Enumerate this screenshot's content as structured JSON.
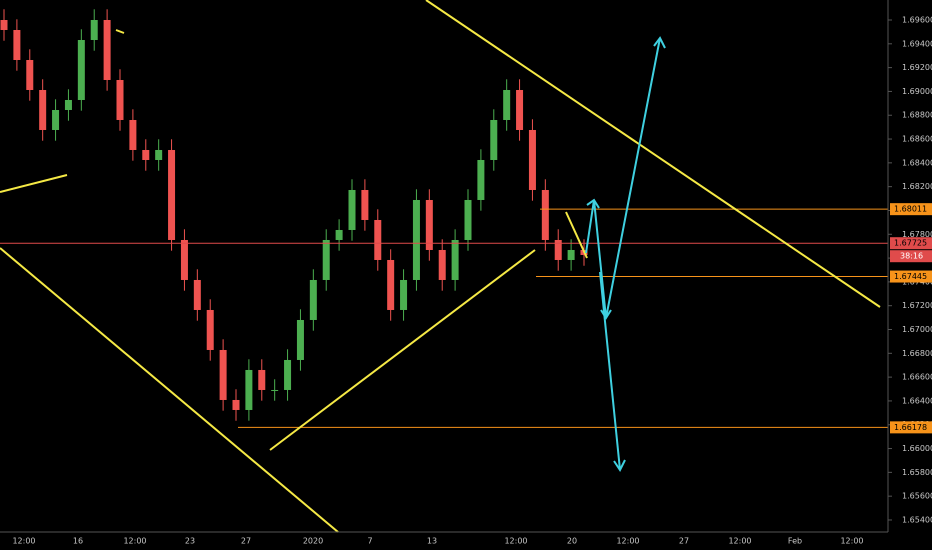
{
  "chart_data": {
    "type": "candlestick",
    "up_color": "#4caf50",
    "down_color": "#ef5350",
    "ylim": [
      1.65299,
      1.69768
    ],
    "yticks": [
      {
        "value": 1.654,
        "label": "1.65400"
      },
      {
        "value": 1.656,
        "label": "1.65600"
      },
      {
        "value": 1.658,
        "label": "1.65800"
      },
      {
        "value": 1.66,
        "label": "1.66000"
      },
      {
        "value": 1.662,
        "label": "1.66200"
      },
      {
        "value": 1.664,
        "label": "1.66400"
      },
      {
        "value": 1.666,
        "label": "1.66600"
      },
      {
        "value": 1.668,
        "label": "1.66800"
      },
      {
        "value": 1.67,
        "label": "1.67000"
      },
      {
        "value": 1.672,
        "label": "1.67200"
      },
      {
        "value": 1.674,
        "label": "1.67400"
      },
      {
        "value": 1.676,
        "label": "1.67600"
      },
      {
        "value": 1.678,
        "label": "1.67800"
      },
      {
        "value": 1.68,
        "label": "1.68000"
      },
      {
        "value": 1.682,
        "label": "1.68200"
      },
      {
        "value": 1.684,
        "label": "1.68400"
      },
      {
        "value": 1.686,
        "label": "1.68600"
      },
      {
        "value": 1.688,
        "label": "1.68800"
      },
      {
        "value": 1.69,
        "label": "1.69000"
      },
      {
        "value": 1.692,
        "label": "1.69200"
      },
      {
        "value": 1.694,
        "label": "1.69400"
      },
      {
        "value": 1.696,
        "label": "1.69600"
      }
    ],
    "x_labels": [
      "12:00",
      "16",
      "12:00",
      "23",
      "27",
      "2020",
      "7",
      "13",
      "12:00",
      "20",
      "12:00",
      "27",
      "12:00",
      "Feb",
      "12:00"
    ],
    "open": [
      1.696,
      1.69516,
      1.69264,
      1.69012,
      1.68676,
      1.68844,
      1.68928,
      1.69432,
      1.696,
      1.69096,
      1.6876,
      1.68508,
      1.68424,
      1.68508,
      1.67752,
      1.67416,
      1.67164,
      1.66828,
      1.66408,
      1.66324,
      1.6666,
      1.66492,
      1.66492,
      1.66744,
      1.6708,
      1.67416,
      1.67752,
      1.67836,
      1.68172,
      1.6792,
      1.67584,
      1.67164,
      1.67416,
      1.68088,
      1.67668,
      1.67416,
      1.67752,
      1.68088,
      1.68424,
      1.6876,
      1.69012,
      1.68676,
      1.68172,
      1.67752,
      1.67584,
      1.67668
    ],
    "high": [
      1.6969,
      1.69606,
      1.69354,
      1.69102,
      1.68934,
      1.69018,
      1.69522,
      1.6969,
      1.6969,
      1.69186,
      1.6885,
      1.68598,
      1.68598,
      1.68598,
      1.67842,
      1.67506,
      1.67254,
      1.66918,
      1.66498,
      1.6675,
      1.6675,
      1.66582,
      1.66834,
      1.6717,
      1.67506,
      1.67842,
      1.67926,
      1.68262,
      1.68262,
      1.6801,
      1.67674,
      1.67506,
      1.68178,
      1.68178,
      1.67758,
      1.67842,
      1.68178,
      1.68514,
      1.6885,
      1.69102,
      1.69102,
      1.68766,
      1.68262,
      1.67842,
      1.67758,
      1.67758
    ],
    "low": [
      1.69426,
      1.69174,
      1.68922,
      1.68586,
      1.68586,
      1.68754,
      1.68838,
      1.69342,
      1.69006,
      1.6867,
      1.68418,
      1.68334,
      1.68334,
      1.67662,
      1.67326,
      1.67074,
      1.66738,
      1.66318,
      1.66234,
      1.66234,
      1.66402,
      1.66402,
      1.66402,
      1.66654,
      1.6699,
      1.67326,
      1.67662,
      1.67746,
      1.6783,
      1.67494,
      1.67074,
      1.67074,
      1.67326,
      1.67578,
      1.67326,
      1.67326,
      1.67662,
      1.67998,
      1.68334,
      1.6867,
      1.68586,
      1.68082,
      1.67662,
      1.67494,
      1.67494,
      1.67536
    ],
    "close": [
      1.69516,
      1.69264,
      1.69012,
      1.68676,
      1.68844,
      1.68928,
      1.69432,
      1.696,
      1.69096,
      1.6876,
      1.68508,
      1.68424,
      1.68508,
      1.67752,
      1.67416,
      1.67164,
      1.66828,
      1.66408,
      1.66324,
      1.6666,
      1.66492,
      1.66492,
      1.66744,
      1.6708,
      1.67416,
      1.67752,
      1.67836,
      1.68172,
      1.6792,
      1.67584,
      1.67164,
      1.67416,
      1.68088,
      1.67668,
      1.67416,
      1.67752,
      1.68088,
      1.68424,
      1.6876,
      1.69012,
      1.68676,
      1.68172,
      1.67752,
      1.67584,
      1.67668,
      1.67626
    ],
    "levels": [
      {
        "price": 1.68011,
        "color": "#f7931a"
      },
      {
        "price": 1.67725,
        "color": "#e04b4b"
      },
      {
        "price": 1.67445,
        "color": "#f7931a"
      },
      {
        "price": 1.66178,
        "color": "#f7931a"
      }
    ],
    "countdown": "38:16"
  }
}
